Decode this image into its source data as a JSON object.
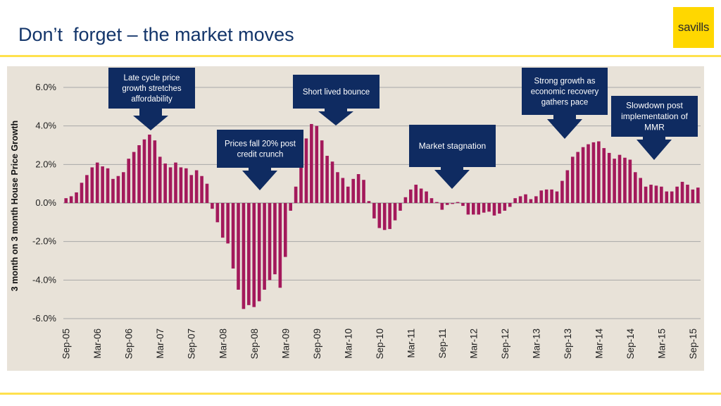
{
  "page": {
    "title": "Don’t  forget – the market moves",
    "logo_text": "savills"
  },
  "colors": {
    "title": "#13356a",
    "bar": "#a3195b",
    "callout": "#0f2b61",
    "panel": "#e8e2d8",
    "accent": "#ffd700"
  },
  "chart_data": {
    "type": "bar",
    "title": "",
    "ylabel": "3 month on 3 month House Price Growth",
    "xlabel": "",
    "ylim": [
      -6,
      6.5
    ],
    "yticks": [
      -6,
      -4,
      -2,
      0,
      2,
      4,
      6
    ],
    "ytick_labels": [
      "-6.0%",
      "-4.0%",
      "-2.0%",
      "0.0%",
      "2.0%",
      "4.0%",
      "6.0%"
    ],
    "start_month": "Sep-05",
    "end_month": "Sep-15",
    "xtick_labels": [
      "Sep-05",
      "Mar-06",
      "Sep-06",
      "Mar-07",
      "Sep-07",
      "Mar-08",
      "Sep-08",
      "Mar-09",
      "Sep-09",
      "Mar-10",
      "Sep-10",
      "Mar-11",
      "Sep-11",
      "Mar-12",
      "Sep-12",
      "Mar-13",
      "Sep-13",
      "Mar-14",
      "Sep-14",
      "Mar-15",
      "Sep-15"
    ],
    "values": [
      0.25,
      0.35,
      0.55,
      1.05,
      1.45,
      1.85,
      2.1,
      1.9,
      1.8,
      1.25,
      1.4,
      1.6,
      2.3,
      2.65,
      3.0,
      3.3,
      3.55,
      3.25,
      2.4,
      2.05,
      1.85,
      2.1,
      1.85,
      1.8,
      1.45,
      1.7,
      1.4,
      1.0,
      -0.3,
      -1.0,
      -1.8,
      -2.1,
      -3.4,
      -4.5,
      -5.5,
      -5.3,
      -5.4,
      -5.1,
      -4.5,
      -4.0,
      -3.7,
      -4.4,
      -2.8,
      -0.4,
      0.85,
      2.4,
      3.35,
      4.1,
      4.0,
      3.25,
      2.45,
      2.15,
      1.6,
      1.3,
      0.85,
      1.25,
      1.5,
      1.2,
      0.1,
      -0.8,
      -1.3,
      -1.4,
      -1.35,
      -0.9,
      -0.4,
      0.3,
      0.7,
      0.95,
      0.75,
      0.6,
      0.25,
      0.05,
      -0.35,
      -0.1,
      -0.05,
      0.05,
      -0.15,
      -0.6,
      -0.6,
      -0.6,
      -0.5,
      -0.45,
      -0.65,
      -0.55,
      -0.4,
      -0.2,
      0.25,
      0.35,
      0.45,
      0.2,
      0.35,
      0.65,
      0.7,
      0.7,
      0.6,
      1.15,
      1.7,
      2.4,
      2.65,
      2.9,
      3.05,
      3.15,
      3.2,
      2.85,
      2.6,
      2.3,
      2.5,
      2.35,
      2.25,
      1.6,
      1.3,
      0.85,
      0.95,
      0.9,
      0.85,
      0.6,
      0.6,
      0.85,
      1.1,
      0.95,
      0.7,
      0.8
    ],
    "annotations": [
      {
        "text": "Late cycle price growth stretches affordability",
        "month_index": 16
      },
      {
        "text": "Short lived bounce",
        "month_index": 48
      },
      {
        "text": "Prices fall 20% post credit crunch",
        "month_index": 36
      },
      {
        "text": "Market stagnation",
        "month_index": 73
      },
      {
        "text": "Strong growth as economic recovery gathers pace",
        "month_index": 97
      },
      {
        "text": "Slowdown post implementation of MMR",
        "month_index": 112
      }
    ]
  }
}
